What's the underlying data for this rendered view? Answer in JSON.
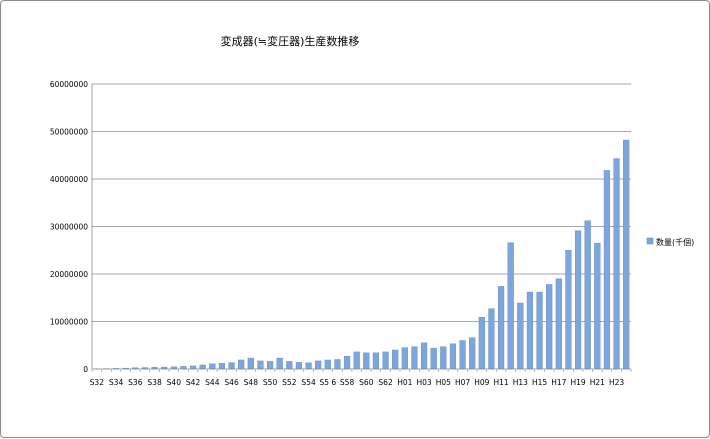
{
  "chart_data": {
    "type": "bar",
    "title": "変成器(≒変圧器)生産数推移",
    "xlabel": "",
    "ylabel": "",
    "ylim": [
      0,
      60000000
    ],
    "yticks": [
      "0",
      "10000000",
      "20000000",
      "30000000",
      "40000000",
      "50000000",
      "60000000"
    ],
    "grid": true,
    "legend_position": "right",
    "categories": [
      "S32",
      "S33",
      "S34",
      "S35",
      "S36",
      "S37",
      "S38",
      "S39",
      "S40",
      "S41",
      "S42",
      "S43",
      "S44",
      "S45",
      "S46",
      "S47",
      "S48",
      "S49",
      "S50",
      "S51",
      "S52",
      "S53",
      "S54",
      "S55",
      "S56",
      "S57",
      "S58",
      "S59",
      "S60",
      "S61",
      "S62",
      "S63",
      "H01",
      "H02",
      "H03",
      "H04",
      "H05",
      "H06",
      "H07",
      "H08",
      "H09",
      "H10",
      "H11",
      "H12",
      "H13",
      "H14",
      "H15",
      "H16",
      "H17",
      "H18",
      "H19",
      "H20",
      "H21",
      "H22",
      "H23",
      "H24"
    ],
    "tick_labels": [
      "S32",
      "S34",
      "S36",
      "S38",
      "S40",
      "S42",
      "S44",
      "S46",
      "S48",
      "S50",
      "S52",
      "S54",
      "S5 6",
      "S58",
      "S60",
      "S62",
      "H01",
      "H03",
      "H05",
      "H07",
      "H09",
      "H11",
      "H13",
      "H15",
      "H17",
      "H19",
      "H21",
      "H23"
    ],
    "series": [
      {
        "name": "数量(千個)",
        "color": "#7fa6dc",
        "values": [
          50000,
          80000,
          120000,
          180000,
          250000,
          300000,
          350000,
          400000,
          450000,
          550000,
          650000,
          850000,
          1100000,
          1200000,
          1350000,
          1900000,
          2300000,
          1700000,
          1600000,
          2300000,
          1600000,
          1400000,
          1300000,
          1700000,
          1900000,
          2000000,
          2700000,
          3600000,
          3400000,
          3400000,
          3600000,
          4000000,
          4500000,
          4700000,
          5500000,
          4400000,
          4700000,
          5300000,
          6000000,
          6600000,
          10900000,
          12700000,
          17400000,
          26600000,
          13900000,
          16200000,
          16200000,
          17800000,
          19000000,
          25000000,
          29100000,
          31200000,
          26500000,
          41800000,
          44300000,
          48200000
        ]
      }
    ]
  }
}
